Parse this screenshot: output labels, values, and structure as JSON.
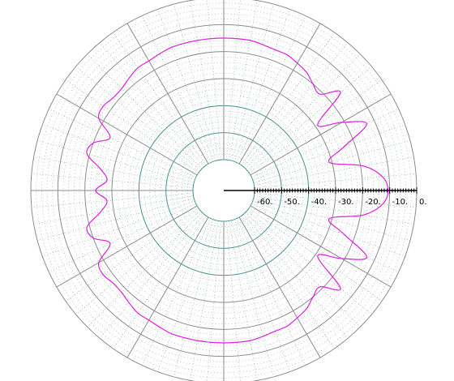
{
  "chart_data": {
    "type": "polar-line",
    "title": "",
    "radial_axis": {
      "min": -70,
      "max": 0,
      "scale": "dB",
      "major_rings": [
        -60,
        -50,
        -40,
        -30,
        -20,
        -10,
        0
      ],
      "tick_labels": [
        "-60.",
        "-50.",
        "-40.",
        "-30.",
        "-20.",
        "-10.",
        "0."
      ],
      "minor_step": 1,
      "minor_rings": "every 2 dB (dotted)"
    },
    "angular_axis": {
      "major_spoke_step_deg": 30,
      "minor_spoke_step_deg": 5,
      "zero_direction": "right",
      "direction": "counterclockwise"
    },
    "grid": true,
    "series": [
      {
        "color": "#e020e0",
        "points_deg_db": [
          [
            0,
            -10.6
          ],
          [
            5,
            -12.5
          ],
          [
            10,
            -19
          ],
          [
            15,
            -31
          ],
          [
            20,
            -24
          ],
          [
            25,
            -13
          ],
          [
            30,
            -21
          ],
          [
            35,
            -29
          ],
          [
            40,
            -15
          ],
          [
            45,
            -21
          ],
          [
            50,
            -20
          ],
          [
            55,
            -18
          ],
          [
            60,
            -17
          ],
          [
            65,
            -16
          ],
          [
            70,
            -16
          ],
          [
            75,
            -15.5
          ],
          [
            80,
            -15
          ],
          [
            85,
            -15
          ],
          [
            90,
            -15
          ],
          [
            95,
            -15
          ],
          [
            100,
            -15
          ],
          [
            105,
            -15
          ],
          [
            110,
            -15
          ],
          [
            115,
            -15.5
          ],
          [
            120,
            -16
          ],
          [
            125,
            -16
          ],
          [
            130,
            -17
          ],
          [
            135,
            -18
          ],
          [
            140,
            -18
          ],
          [
            145,
            -17
          ],
          [
            150,
            -18
          ],
          [
            155,
            -25
          ],
          [
            160,
            -20
          ],
          [
            165,
            -19
          ],
          [
            170,
            -25
          ],
          [
            175,
            -28
          ],
          [
            180,
            -24
          ],
          [
            185,
            -28
          ],
          [
            190,
            -25
          ],
          [
            195,
            -19
          ],
          [
            200,
            -20
          ],
          [
            205,
            -25
          ],
          [
            210,
            -18
          ],
          [
            215,
            -17
          ],
          [
            220,
            -18
          ],
          [
            225,
            -18
          ],
          [
            230,
            -17
          ],
          [
            235,
            -16
          ],
          [
            240,
            -16
          ],
          [
            245,
            -15.5
          ],
          [
            250,
            -15
          ],
          [
            255,
            -15
          ],
          [
            260,
            -15
          ],
          [
            265,
            -15
          ],
          [
            270,
            -15
          ],
          [
            275,
            -15
          ],
          [
            280,
            -15
          ],
          [
            285,
            -15.5
          ],
          [
            290,
            -16
          ],
          [
            295,
            -16
          ],
          [
            300,
            -17
          ],
          [
            305,
            -18
          ],
          [
            310,
            -20
          ],
          [
            315,
            -21
          ],
          [
            320,
            -15
          ],
          [
            325,
            -29
          ],
          [
            330,
            -21
          ],
          [
            335,
            -13
          ],
          [
            340,
            -24
          ],
          [
            345,
            -31
          ],
          [
            350,
            -19
          ],
          [
            355,
            -12.5
          ]
        ]
      }
    ]
  }
}
